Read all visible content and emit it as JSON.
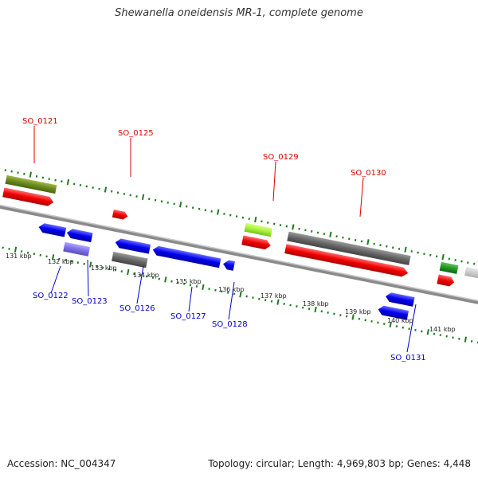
{
  "title": "Shewanella oneidensis MR-1, complete genome",
  "footer": {
    "accession": "Accession: NC_004347",
    "summary": "Topology: circular; Length: 4,969,803 bp; Genes: 4,448"
  },
  "colors": {
    "forward_label": "#dd0000",
    "reverse_label": "#0000cc",
    "tick": "#1e7a1e",
    "backbone": "#888888"
  },
  "kbp_labels": [
    "131 kbp",
    "132 kbp",
    "133 kbp",
    "134 kbp",
    "135 kbp",
    "136 kbp",
    "137 kbp",
    "138 kbp",
    "139 kbp",
    "140 kbp",
    "141 kbp"
  ],
  "forward_genes": [
    {
      "name": "SO_0121",
      "kbp": 130.7,
      "color": "red"
    },
    {
      "name": "SO_0125",
      "kbp": 133.5,
      "color": "red"
    },
    {
      "name": "SO_0129",
      "kbp": 136.5,
      "color": "red"
    },
    {
      "name": "SO_0130",
      "kbp": 137.9,
      "color": "red"
    }
  ],
  "reverse_genes": [
    {
      "name": "SO_0122",
      "kbp": 131.8,
      "color": "blue"
    },
    {
      "name": "SO_0123",
      "kbp": 132.4,
      "color": "blue"
    },
    {
      "name": "SO_0126",
      "kbp": 133.8,
      "color": "blue"
    },
    {
      "name": "SO_0127",
      "kbp": 134.8,
      "color": "blue"
    },
    {
      "name": "SO_0128",
      "kbp": 135.4,
      "color": "blue"
    },
    {
      "name": "SO_0131",
      "kbp": 139.9,
      "color": "blue"
    }
  ]
}
